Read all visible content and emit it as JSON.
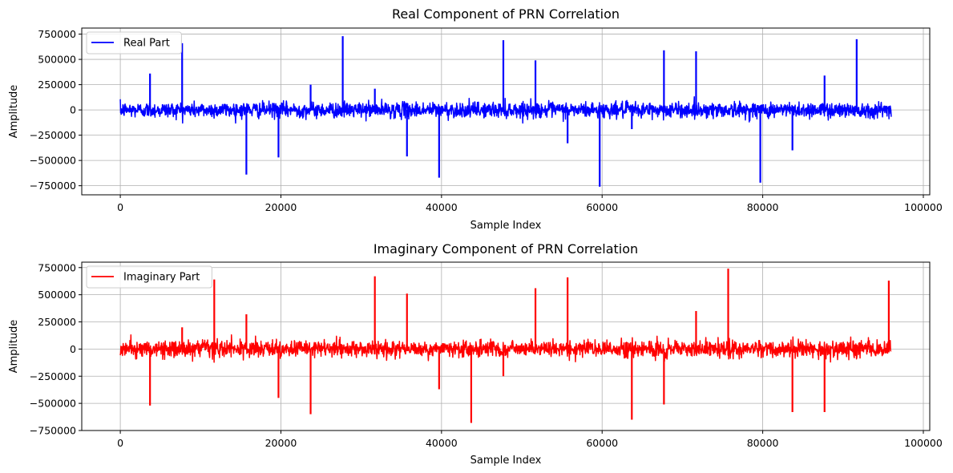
{
  "chart_data": [
    {
      "type": "line",
      "title": "Real Component of PRN Correlation",
      "xlabel": "Sample Index",
      "ylabel": "Amplitude",
      "xlim": [
        -4800,
        100800
      ],
      "ylim": [
        -840000,
        810000
      ],
      "xticks": [
        0,
        20000,
        40000,
        60000,
        80000,
        100000
      ],
      "xtick_labels": [
        "0",
        "20000",
        "40000",
        "60000",
        "80000",
        "100000"
      ],
      "yticks": [
        -750000,
        -500000,
        -250000,
        0,
        250000,
        500000,
        750000
      ],
      "ytick_labels": [
        "−750000",
        "−500000",
        "−250000",
        "0",
        "250000",
        "500000",
        "750000"
      ],
      "grid": true,
      "legend_position": "top-left",
      "noise_band": {
        "x_start": 0,
        "x_end": 96000,
        "typical_amplitude": 100000
      },
      "series": [
        {
          "name": "Real Part",
          "color": "#0000ff",
          "x": [
            3700,
            7700,
            15700,
            19700,
            23700,
            27700,
            31700,
            35700,
            39700,
            47700,
            51700,
            55700,
            59700,
            63700,
            67700,
            71700,
            79700,
            83700,
            87700,
            91700
          ],
          "y": [
            360000,
            660000,
            -640000,
            -470000,
            250000,
            730000,
            210000,
            -460000,
            -670000,
            690000,
            490000,
            -330000,
            -760000,
            -190000,
            590000,
            580000,
            -720000,
            -400000,
            340000,
            700000
          ]
        }
      ]
    },
    {
      "type": "line",
      "title": "Imaginary Component of PRN Correlation",
      "xlabel": "Sample Index",
      "ylabel": "Amplitude",
      "xlim": [
        -4800,
        100800
      ],
      "ylim": [
        -750000,
        800000
      ],
      "xticks": [
        0,
        20000,
        40000,
        60000,
        80000,
        100000
      ],
      "xtick_labels": [
        "0",
        "20000",
        "40000",
        "60000",
        "80000",
        "100000"
      ],
      "yticks": [
        -750000,
        -500000,
        -250000,
        0,
        250000,
        500000,
        750000
      ],
      "ytick_labels": [
        "−750000",
        "−500000",
        "−250000",
        "0",
        "250000",
        "500000",
        "750000"
      ],
      "grid": true,
      "legend_position": "top-left",
      "noise_band": {
        "x_start": 0,
        "x_end": 96000,
        "typical_amplitude": 100000
      },
      "series": [
        {
          "name": "Imaginary Part",
          "color": "#ff0000",
          "x": [
            3700,
            7700,
            11700,
            15700,
            19700,
            23700,
            31700,
            35700,
            39700,
            43700,
            47700,
            51700,
            55700,
            63700,
            67700,
            71700,
            75700,
            83700,
            87700,
            95700
          ],
          "y": [
            -520000,
            200000,
            640000,
            320000,
            -450000,
            -600000,
            670000,
            510000,
            -370000,
            -680000,
            -250000,
            560000,
            660000,
            -650000,
            -510000,
            350000,
            740000,
            -580000,
            -580000,
            630000
          ]
        }
      ]
    }
  ]
}
